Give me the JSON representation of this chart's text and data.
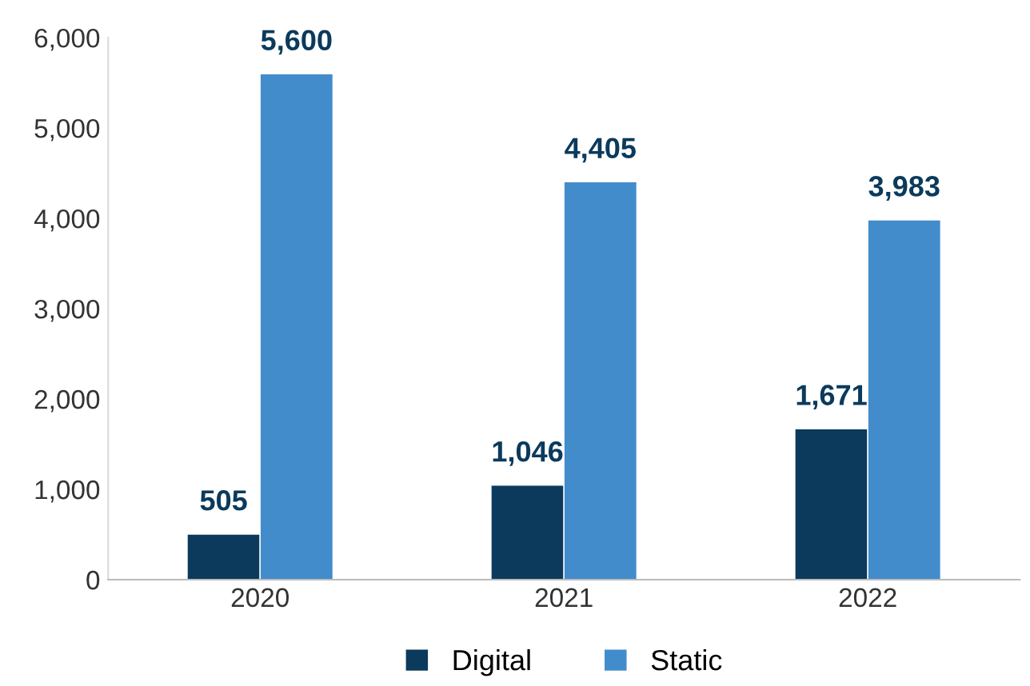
{
  "chart_data": {
    "type": "bar",
    "categories": [
      "2020",
      "2021",
      "2022"
    ],
    "series": [
      {
        "name": "Digital",
        "color": "#0b3a5c",
        "values": [
          505,
          1046,
          1671
        ],
        "value_labels": [
          "505",
          "1,046",
          "1,671"
        ]
      },
      {
        "name": "Static",
        "color": "#428ccc",
        "values": [
          5600,
          4405,
          3983
        ],
        "value_labels": [
          "5,600",
          "4,405",
          "3,983"
        ]
      }
    ],
    "ylim": [
      0,
      6000
    ],
    "yticks": [
      0,
      {
        "value": 1000,
        "label": "1,000"
      },
      {
        "value": 2000,
        "label": "2,000"
      },
      {
        "value": 3000,
        "label": "3,000"
      },
      {
        "value": 4000,
        "label": "4,000"
      },
      {
        "value": 5000,
        "label": "5,000"
      },
      {
        "value": 6000,
        "label": "6,000"
      }
    ],
    "grid": false,
    "legend": "bottom"
  }
}
